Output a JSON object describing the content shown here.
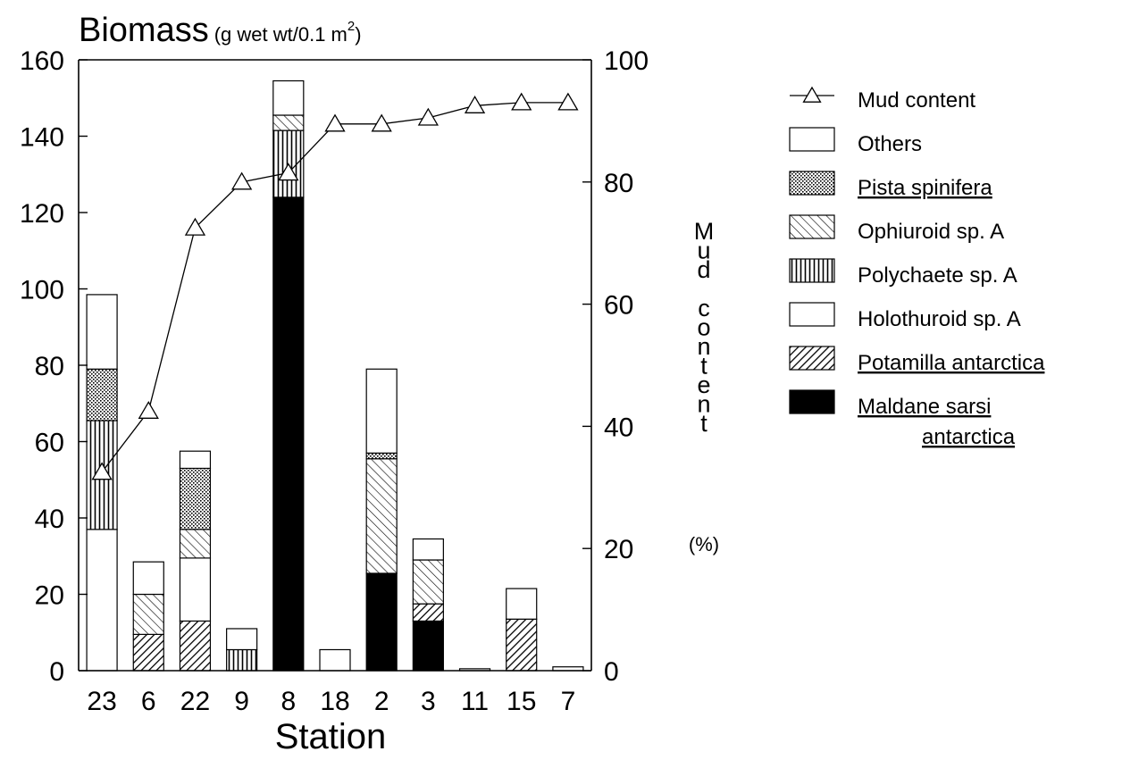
{
  "chart_data": {
    "type": "bar",
    "title_main": "Biomass",
    "title_unit": "(g wet wt/0.1 m",
    "title_unit_sup": "2",
    "title_unit_close": ")",
    "xlabel": "Station",
    "ylabel_right": [
      "M",
      "u",
      "d",
      "",
      "c",
      "o",
      "n",
      "t",
      "e",
      "n",
      "t"
    ],
    "ylabel_right_unit": "(%)",
    "categories": [
      "23",
      "6",
      "22",
      "9",
      "8",
      "18",
      "2",
      "3",
      "11",
      "15",
      "7"
    ],
    "y_left": {
      "min": 0,
      "max": 160,
      "ticks": [
        0,
        20,
        40,
        60,
        80,
        100,
        120,
        140,
        160
      ]
    },
    "y_right": {
      "min": 0,
      "max": 100,
      "ticks": [
        0,
        20,
        40,
        60,
        80,
        100
      ]
    },
    "grid": false,
    "legend_position": "right",
    "series": [
      {
        "name": "Maldane sarsi antarctica",
        "name_line1": "Maldane sarsi",
        "name_line2": "antarctica",
        "pattern": "solid",
        "underlined": true,
        "values": [
          0,
          0,
          0,
          0,
          124,
          0,
          25.5,
          13,
          0,
          0,
          0
        ]
      },
      {
        "name": "Potamilla antarctica",
        "pattern": "dense-diagonal",
        "underlined": true,
        "values": [
          0,
          9.5,
          13,
          0,
          0,
          0,
          0,
          4.5,
          0,
          13.5,
          0
        ]
      },
      {
        "name": "Holothuroid sp. A",
        "pattern": "blank",
        "underlined": false,
        "values": [
          37,
          0,
          16.5,
          0,
          0,
          0,
          0,
          0,
          0,
          0,
          0
        ]
      },
      {
        "name": "Polychaete sp. A",
        "pattern": "vertical-lines",
        "underlined": false,
        "values": [
          28.5,
          0,
          0,
          5.5,
          17.5,
          0,
          0,
          0,
          0,
          0,
          0
        ]
      },
      {
        "name": "Ophiuroid sp. A",
        "pattern": "sparse-diagonal",
        "underlined": false,
        "values": [
          0,
          10.5,
          7.5,
          0,
          4,
          0,
          30,
          11.5,
          0,
          0,
          0
        ]
      },
      {
        "name": "Pista spinifera",
        "pattern": "dots",
        "underlined": true,
        "values": [
          13.5,
          0,
          16,
          0,
          0,
          0,
          1.5,
          0,
          0,
          0,
          0
        ]
      },
      {
        "name": "Others",
        "pattern": "blank",
        "underlined": false,
        "values": [
          19.5,
          8.5,
          4.5,
          5.5,
          9,
          5.5,
          22,
          5.5,
          0.5,
          8,
          1
        ]
      }
    ],
    "line_series": {
      "name": "Mud content",
      "axis": "right",
      "values": [
        32.5,
        42.5,
        72.5,
        80,
        81.5,
        89.5,
        89.5,
        90.5,
        92.5,
        93,
        93
      ]
    },
    "legend_order": [
      "Mud content",
      "Others",
      "Pista spinifera",
      "Ophiuroid sp. A",
      "Polychaete sp. A",
      "Holothuroid sp. A",
      "Potamilla antarctica",
      "Maldane sarsi antarctica"
    ]
  }
}
